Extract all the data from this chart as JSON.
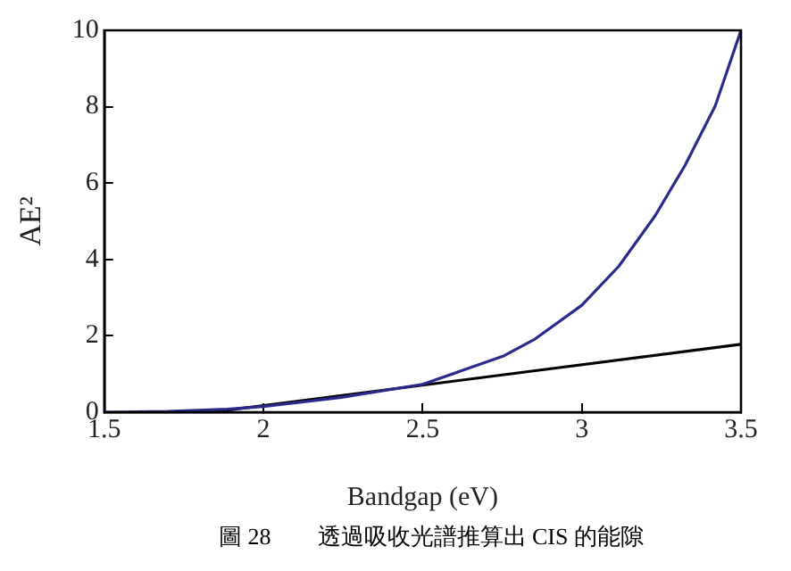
{
  "chart_data": {
    "type": "line",
    "xlabel": "Bandgap (eV)",
    "ylabel": "AE²",
    "annotations": [
      "圖 28　　透過吸收光譜推算出 CIS 的能隙"
    ],
    "xlim": [
      1.5,
      3.5
    ],
    "xticks": [
      1.5,
      2,
      2.5,
      3,
      3.5
    ],
    "ylim": [
      0,
      10
    ],
    "yticks": [
      0,
      2,
      4,
      6,
      8,
      10
    ],
    "grid": false,
    "legend": false,
    "marker": "none",
    "line_style": "solid",
    "series": [
      {
        "color": "#2a2a8a",
        "x": [
          1.5,
          1.7,
          1.886,
          2.0,
          2.245,
          2.5,
          2.624,
          2.756,
          2.85,
          3.0,
          3.116,
          3.23,
          3.324,
          3.419,
          3.5
        ],
        "values": [
          0,
          0.02,
          0.08,
          0.15,
          0.39,
          0.73,
          1.09,
          1.48,
          1.9,
          2.8,
          3.82,
          5.14,
          6.46,
          8.02,
          10
        ]
      },
      {
        "type": "line",
        "color": "#000000",
        "x": [
          1.84,
          3.5
        ],
        "values": [
          0,
          1.78
        ]
      }
    ]
  }
}
